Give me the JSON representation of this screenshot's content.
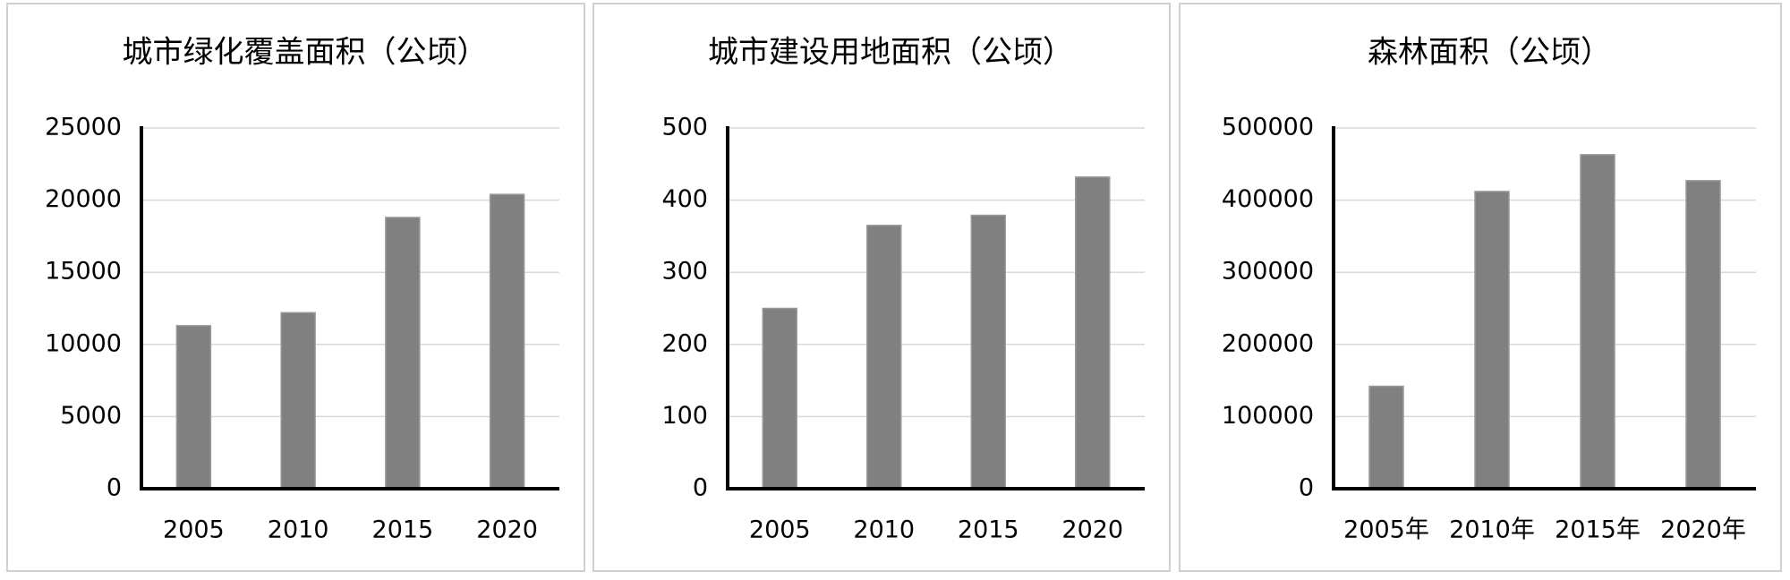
{
  "chart_data": [
    {
      "type": "bar",
      "title": "城市绿化覆盖面积（公顷）",
      "categories": [
        "2005",
        "2010",
        "2015",
        "2020"
      ],
      "values": [
        11300,
        12200,
        18800,
        20400
      ],
      "color": "#808080",
      "ylim": [
        0,
        25000
      ],
      "yticks": [
        0,
        5000,
        10000,
        15000,
        20000,
        25000
      ],
      "grid": true
    },
    {
      "type": "bar",
      "title": "城市建设用地面积（公顷）",
      "categories": [
        "2005",
        "2010",
        "2015",
        "2020"
      ],
      "values": [
        250,
        365,
        379,
        432
      ],
      "color": "#808080",
      "ylim": [
        0,
        500
      ],
      "yticks": [
        0,
        100,
        200,
        300,
        400,
        500
      ],
      "grid": true
    },
    {
      "type": "bar",
      "title": "森林面积（公顷）",
      "categories": [
        "2005年",
        "2010年",
        "2015年",
        "2020年"
      ],
      "values": [
        142000,
        412000,
        463000,
        427000
      ],
      "color": "#808080",
      "ylim": [
        0,
        500000
      ],
      "yticks": [
        0,
        100000,
        200000,
        300000,
        400000,
        500000
      ],
      "grid": true
    }
  ]
}
